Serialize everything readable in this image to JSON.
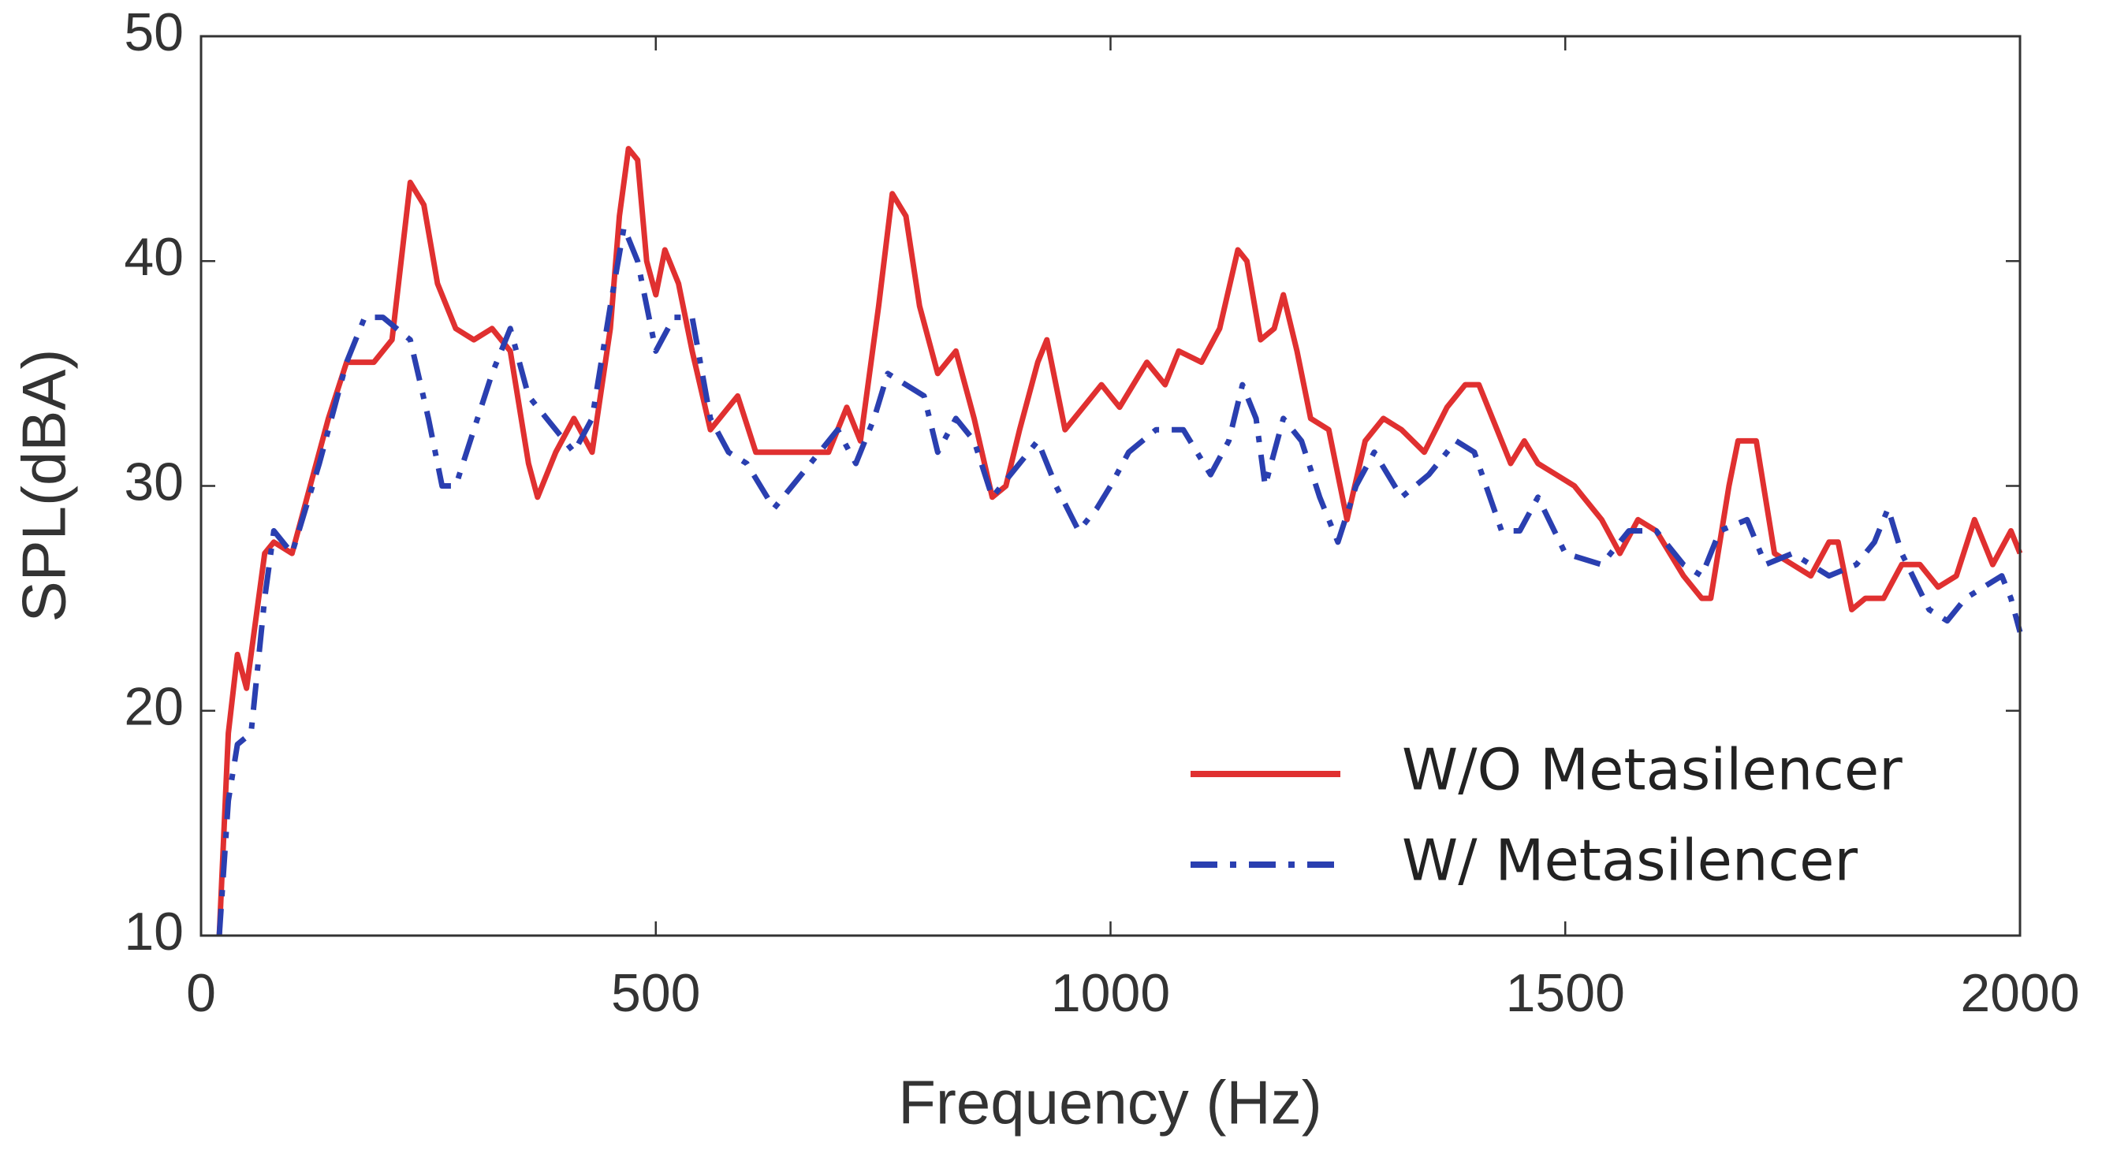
{
  "chart_data": {
    "type": "line",
    "xlabel": "Frequency (Hz)",
    "ylabel": "SPL(dBA)",
    "xlim": [
      0,
      2000
    ],
    "ylim": [
      10,
      50
    ],
    "xticks": [
      0,
      500,
      1000,
      1500,
      2000
    ],
    "yticks": [
      10,
      20,
      30,
      40,
      50
    ],
    "legend": "lower right",
    "series": [
      {
        "name": "W/O Metasilencer",
        "color": "#e03030",
        "style": "solid",
        "x": [
          20,
          30,
          40,
          50,
          60,
          70,
          80,
          100,
          120,
          140,
          160,
          190,
          210,
          230,
          245,
          260,
          280,
          300,
          320,
          340,
          360,
          370,
          390,
          410,
          430,
          450,
          460,
          470,
          480,
          490,
          500,
          510,
          525,
          540,
          560,
          580,
          590,
          610,
          650,
          690,
          710,
          725,
          745,
          760,
          775,
          790,
          810,
          830,
          850,
          870,
          885,
          900,
          920,
          930,
          950,
          970,
          990,
          1010,
          1040,
          1060,
          1075,
          1100,
          1120,
          1140,
          1150,
          1165,
          1180,
          1190,
          1205,
          1220,
          1240,
          1260,
          1280,
          1300,
          1320,
          1345,
          1370,
          1390,
          1405,
          1420,
          1440,
          1455,
          1470,
          1490,
          1510,
          1520,
          1540,
          1560,
          1580,
          1600,
          1630,
          1650,
          1660,
          1680,
          1690,
          1710,
          1730,
          1750,
          1770,
          1790,
          1800,
          1815,
          1830,
          1850,
          1870,
          1890,
          1910,
          1930,
          1950,
          1970,
          1990,
          2000
        ],
        "values": [
          10,
          19,
          22.5,
          21,
          24,
          27,
          27.5,
          27,
          30,
          33,
          35.5,
          35.5,
          36.5,
          43.5,
          42.5,
          39,
          37,
          36.5,
          37,
          36,
          31,
          29.5,
          31.5,
          33,
          31.5,
          37,
          42,
          45,
          44.5,
          40,
          38.5,
          40.5,
          39,
          36,
          32.5,
          33.5,
          34,
          31.5,
          31.5,
          31.5,
          33.5,
          32,
          38,
          43,
          42,
          38,
          35,
          36,
          33,
          29.5,
          30,
          32.5,
          35.5,
          36.5,
          32.5,
          33.5,
          34.5,
          33.5,
          35.5,
          34.5,
          36,
          35.5,
          37,
          40.5,
          40,
          36.5,
          37,
          38.5,
          36,
          33,
          32.5,
          28.5,
          32,
          33,
          32.5,
          31.5,
          33.5,
          34.5,
          34.5,
          33,
          31,
          32,
          31,
          30.5,
          30,
          29.5,
          28.5,
          27,
          28.5,
          28,
          26,
          25,
          25,
          30,
          32,
          32,
          27,
          26.5,
          26,
          27.5,
          27.5,
          24.5,
          25,
          25,
          26.5,
          26.5,
          25.5,
          26,
          28.5,
          26.5,
          28,
          27
        ]
      },
      {
        "name": "W/ Metasilencer",
        "color": "#2a3fb0",
        "style": "dashdot",
        "x": [
          20,
          30,
          40,
          55,
          70,
          80,
          100,
          130,
          160,
          180,
          200,
          230,
          250,
          265,
          280,
          300,
          320,
          340,
          360,
          380,
          410,
          430,
          450,
          465,
          480,
          500,
          520,
          540,
          560,
          580,
          600,
          630,
          650,
          680,
          700,
          720,
          740,
          755,
          775,
          795,
          810,
          830,
          850,
          870,
          890,
          920,
          940,
          965,
          985,
          1000,
          1020,
          1050,
          1080,
          1110,
          1130,
          1145,
          1160,
          1170,
          1190,
          1210,
          1230,
          1250,
          1270,
          1290,
          1320,
          1350,
          1380,
          1400,
          1430,
          1450,
          1470,
          1500,
          1540,
          1570,
          1600,
          1630,
          1650,
          1670,
          1700,
          1720,
          1750,
          1790,
          1820,
          1840,
          1855,
          1870,
          1900,
          1920,
          1940,
          1980,
          1990,
          2000
        ],
        "values": [
          10,
          16,
          18.5,
          19,
          25,
          28,
          27,
          31,
          35.5,
          37.5,
          37.5,
          36.5,
          33,
          30,
          30,
          32.5,
          35,
          37,
          34,
          33,
          31.5,
          33,
          38,
          41.5,
          40,
          36,
          37.5,
          37.5,
          33,
          31.5,
          31,
          29,
          30,
          31.5,
          32.5,
          31,
          33,
          35,
          34.5,
          34,
          31.5,
          33,
          32,
          29.5,
          30.5,
          32,
          30,
          28,
          29,
          30,
          31.5,
          32.5,
          32.5,
          30.5,
          32,
          34.5,
          33,
          30,
          33,
          32,
          29.5,
          27.5,
          30,
          31.5,
          29.5,
          30.5,
          32,
          31.5,
          28,
          28,
          29.5,
          27,
          26.5,
          28,
          28,
          26.5,
          26,
          28,
          28.5,
          26.5,
          27,
          26,
          26.5,
          27.5,
          29,
          27,
          24.5,
          24,
          25,
          26,
          25,
          23.5
        ]
      }
    ]
  }
}
